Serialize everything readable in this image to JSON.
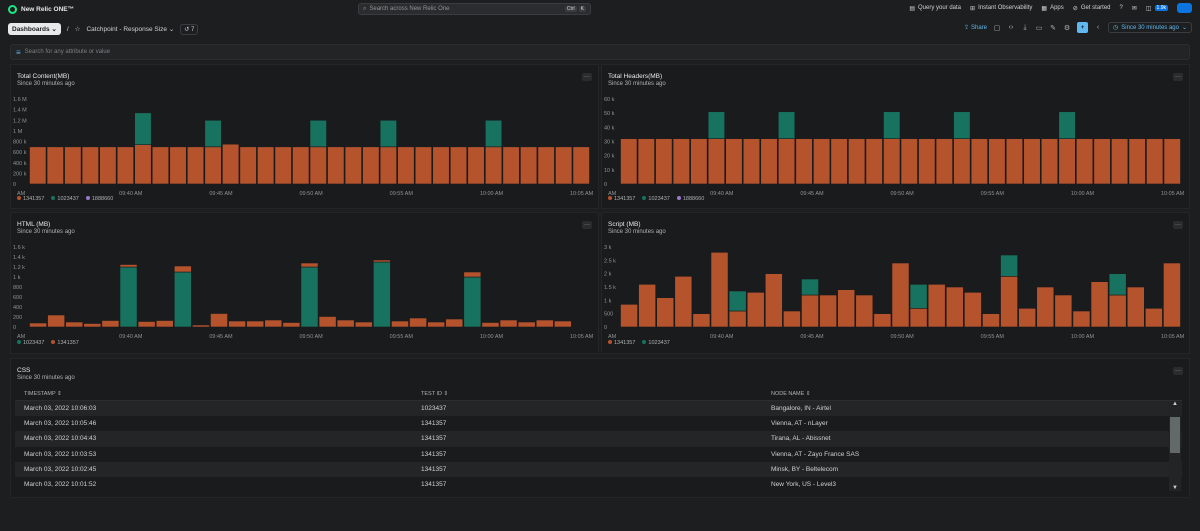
{
  "topbar": {
    "brand": "New Relic ONE™",
    "search_placeholder": "Search across New Relic One",
    "kbd": [
      "Ctrl",
      "K"
    ],
    "nav": [
      "Query your data",
      "Instant Observability",
      "Apps",
      "Get started"
    ],
    "badge": "1.9k"
  },
  "subbar": {
    "dashboards_label": "Dashboards ⌄",
    "separator": "/",
    "dashboard_name": "Catchpoint - Response Size ⌄",
    "version_count": "7",
    "share": "Share",
    "time_range": "Since 30 minutes ago"
  },
  "filter": {
    "placeholder": "Search for any attribute or value"
  },
  "colors": {
    "orange": "#b5532d",
    "teal": "#17735f",
    "purple": "#9c78c9",
    "accent": "#5fb8f0"
  },
  "panels": {
    "total_content": {
      "title": "Total Content(MB)",
      "subtitle": "Since 30 minutes ago",
      "menu": "···"
    },
    "total_headers": {
      "title": "Total Headers(MB)",
      "subtitle": "Since 30 minutes ago",
      "menu": "···"
    },
    "html": {
      "title": "HTML (MB)",
      "subtitle": "Since 30 minutes ago",
      "menu": "···"
    },
    "script": {
      "title": "Script (MB)",
      "subtitle": "Since 30 minutes ago",
      "menu": "···"
    },
    "css": {
      "title": "CSS",
      "subtitle": "Since 30 minutes ago",
      "menu": "···"
    }
  },
  "chart_data": [
    {
      "type": "bar",
      "title": "Total Content(MB)",
      "stacked": true,
      "yticks": [
        "1.6 M",
        "1.4 M",
        "1.2 M",
        "1 M",
        "800 k",
        "600 k",
        "400 k",
        "200 k",
        "0"
      ],
      "ylim": [
        0,
        1600000
      ],
      "xticks": [
        "AM",
        "09:40 AM",
        "09:45 AM",
        "09:50 AM",
        "09:55 AM",
        "10:00 AM",
        "10:05 AM"
      ],
      "series": [
        {
          "name": "1341357",
          "color": "#b5532d",
          "values": [
            700000,
            700000,
            700000,
            700000,
            700000,
            700000,
            740000,
            700000,
            700000,
            700000,
            700000,
            750000,
            700000,
            700000,
            700000,
            700000,
            700000,
            700000,
            700000,
            700000,
            700000,
            700000,
            700000,
            700000,
            700000,
            700000,
            700000,
            700000,
            700000,
            700000,
            700000,
            700000
          ]
        },
        {
          "name": "1023437",
          "color": "#17735f",
          "values": [
            0,
            0,
            0,
            0,
            0,
            0,
            600000,
            0,
            0,
            0,
            500000,
            0,
            0,
            0,
            0,
            0,
            500000,
            0,
            0,
            0,
            500000,
            0,
            0,
            0,
            0,
            0,
            500000,
            0,
            0,
            0,
            0,
            0
          ]
        },
        {
          "name": "1888660",
          "color": "#9c78c9",
          "values": [
            0,
            0,
            0,
            0,
            0,
            0,
            0,
            0,
            0,
            0,
            0,
            0,
            0,
            0,
            0,
            0,
            0,
            0,
            0,
            0,
            0,
            0,
            0,
            0,
            0,
            0,
            0,
            0,
            0,
            0,
            0,
            0
          ]
        }
      ]
    },
    {
      "type": "bar",
      "title": "Total Headers(MB)",
      "stacked": true,
      "yticks": [
        "60 k",
        "50 k",
        "40 k",
        "30 k",
        "20 k",
        "10 k",
        "0"
      ],
      "ylim": [
        0,
        60000
      ],
      "xticks": [
        "AM",
        "09:40 AM",
        "09:45 AM",
        "09:50 AM",
        "09:55 AM",
        "10:00 AM",
        "10:05 AM"
      ],
      "series": [
        {
          "name": "1341357",
          "color": "#b5532d",
          "values": [
            32000,
            32000,
            32000,
            32000,
            32000,
            32000,
            32000,
            32000,
            32000,
            32000,
            32000,
            32000,
            32000,
            32000,
            32000,
            32000,
            32000,
            32000,
            32000,
            32000,
            32000,
            32000,
            32000,
            32000,
            32000,
            32000,
            32000,
            32000,
            32000,
            32000,
            32000,
            32000
          ]
        },
        {
          "name": "1023437",
          "color": "#17735f",
          "values": [
            0,
            0,
            0,
            0,
            0,
            19000,
            0,
            0,
            0,
            19000,
            0,
            0,
            0,
            0,
            0,
            19000,
            0,
            0,
            0,
            19000,
            0,
            0,
            0,
            0,
            0,
            19000,
            0,
            0,
            0,
            0,
            0,
            0
          ]
        },
        {
          "name": "1888660",
          "color": "#9c78c9",
          "values": [
            0,
            0,
            0,
            0,
            0,
            0,
            0,
            0,
            0,
            0,
            0,
            0,
            0,
            0,
            0,
            0,
            0,
            0,
            0,
            0,
            0,
            0,
            0,
            0,
            0,
            0,
            0,
            0,
            0,
            0,
            0,
            0
          ]
        }
      ]
    },
    {
      "type": "bar",
      "title": "HTML (MB)",
      "stacked": true,
      "yticks": [
        "1.6 k",
        "1.4 k",
        "1.2 k",
        "1 k",
        "800",
        "600",
        "400",
        "200",
        "0"
      ],
      "ylim": [
        0,
        1600
      ],
      "xticks": [
        "AM",
        "09:40 AM",
        "09:45 AM",
        "09:50 AM",
        "09:55 AM",
        "10:00 AM",
        "10:05 AM"
      ],
      "series": [
        {
          "name": "1023437",
          "color": "#17735f",
          "values": [
            0,
            0,
            0,
            0,
            0,
            1200,
            0,
            0,
            1100,
            0,
            0,
            0,
            0,
            0,
            0,
            1200,
            0,
            0,
            0,
            1300,
            0,
            0,
            0,
            0,
            1000,
            0,
            0,
            0,
            0,
            0,
            0
          ]
        },
        {
          "name": "1341357",
          "color": "#b5532d",
          "values": [
            80,
            240,
            100,
            70,
            130,
            50,
            110,
            130,
            120,
            40,
            270,
            120,
            120,
            140,
            90,
            80,
            210,
            140,
            100,
            40,
            120,
            180,
            100,
            160,
            100,
            90,
            140,
            100,
            140,
            120
          ]
        }
      ]
    },
    {
      "type": "bar",
      "title": "Script (MB)",
      "stacked": true,
      "yticks": [
        "3 k",
        "2.5 k",
        "2 k",
        "1.5 k",
        "1 k",
        "500",
        "0"
      ],
      "ylim": [
        0,
        3000
      ],
      "xticks": [
        "AM",
        "09:40 AM",
        "09:45 AM",
        "09:50 AM",
        "09:55 AM",
        "10:00 AM",
        "10:05 AM"
      ],
      "series": [
        {
          "name": "1341357",
          "color": "#b5532d",
          "values": [
            850,
            1600,
            1100,
            1900,
            500,
            2800,
            600,
            1300,
            2000,
            600,
            1200,
            1200,
            1400,
            1200,
            500,
            2400,
            700,
            1600,
            1500,
            1300,
            500,
            1900,
            700,
            1500,
            1200,
            600,
            1700,
            1200,
            1500,
            700,
            2400
          ]
        },
        {
          "name": "1023437",
          "color": "#17735f",
          "values": [
            0,
            0,
            0,
            0,
            0,
            0,
            750,
            0,
            0,
            0,
            600,
            0,
            0,
            0,
            0,
            0,
            900,
            0,
            0,
            0,
            0,
            800,
            0,
            0,
            0,
            0,
            0,
            800,
            0,
            0,
            0
          ]
        }
      ]
    }
  ],
  "css_table": {
    "headers": [
      "TIMESTAMP",
      "TEST ID",
      "NODE NAME"
    ],
    "rows": [
      [
        "March 03, 2022 10:06:03",
        "1023437",
        "Bangalore, IN - Airtel"
      ],
      [
        "March 03, 2022 10:05:46",
        "1341357",
        "Vienna, AT - nLayer"
      ],
      [
        "March 03, 2022 10:04:43",
        "1341357",
        "Tirana, AL - Abissnet"
      ],
      [
        "March 03, 2022 10:03:53",
        "1341357",
        "Vienna, AT - Zayo France SAS"
      ],
      [
        "March 03, 2022 10:02:45",
        "1341357",
        "Minsk, BY - Beltelecom"
      ],
      [
        "March 03, 2022 10:01:52",
        "1341357",
        "New York, US - Level3"
      ]
    ]
  }
}
